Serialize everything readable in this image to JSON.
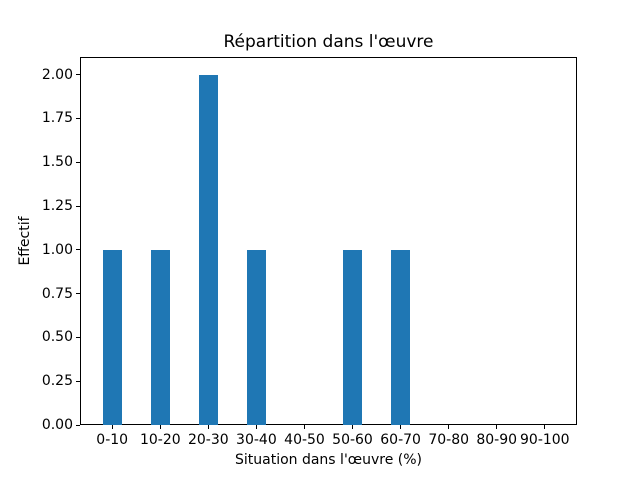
{
  "chart_data": {
    "type": "bar",
    "title": "Répartition dans l'œuvre",
    "xlabel": "Situation dans l'œuvre (%)",
    "ylabel": "Effectif",
    "categories": [
      "0-10",
      "10-20",
      "20-30",
      "30-40",
      "40-50",
      "50-60",
      "60-70",
      "70-80",
      "80-90",
      "90-100"
    ],
    "values": [
      1,
      1,
      2,
      1,
      0,
      1,
      1,
      0,
      0,
      0
    ],
    "ytick_labels": [
      "0.00",
      "0.25",
      "0.50",
      "0.75",
      "1.00",
      "1.25",
      "1.50",
      "1.75",
      "2.00"
    ],
    "ylim": [
      0,
      2.1
    ],
    "bar_color": "#1f77b4",
    "background_color": "#ffffff",
    "grid": false,
    "legend": "none"
  }
}
